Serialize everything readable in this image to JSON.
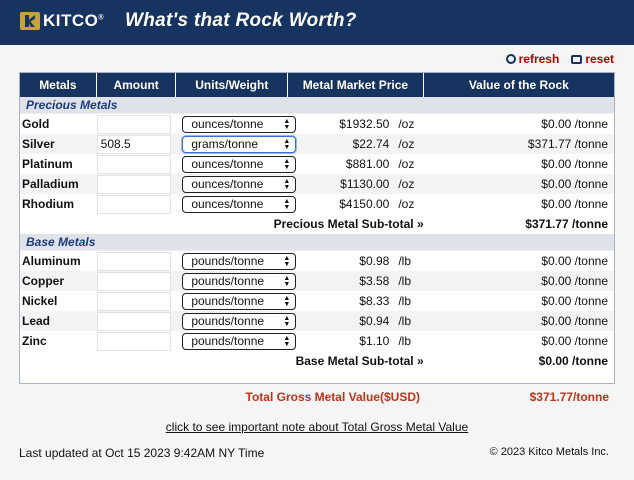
{
  "header": {
    "logo_text": "KITCO",
    "logo_mark": "®",
    "title": "What's that Rock Worth?"
  },
  "actions": {
    "refresh": "refresh",
    "reset": "reset"
  },
  "table": {
    "headers": [
      "Metals",
      "Amount",
      "Units/Weight",
      "Metal Market Price",
      "Value of the Rock"
    ],
    "precious": {
      "section_label": "Precious Metals",
      "rows": [
        {
          "metal": "Gold",
          "amount": "",
          "unit": "ounces/tonne",
          "price": "$1932.50",
          "per": "/oz",
          "value": "$0.00 /tonne"
        },
        {
          "metal": "Silver",
          "amount": "508.5",
          "unit": "grams/tonne",
          "price": "$22.74",
          "per": "/oz",
          "value": "$371.77 /tonne"
        },
        {
          "metal": "Platinum",
          "amount": "",
          "unit": "ounces/tonne",
          "price": "$881.00",
          "per": "/oz",
          "value": "$0.00 /tonne"
        },
        {
          "metal": "Palladium",
          "amount": "",
          "unit": "ounces/tonne",
          "price": "$1130.00",
          "per": "/oz",
          "value": "$0.00 /tonne"
        },
        {
          "metal": "Rhodium",
          "amount": "",
          "unit": "ounces/tonne",
          "price": "$4150.00",
          "per": "/oz",
          "value": "$0.00 /tonne"
        }
      ],
      "subtotal_label": "Precious Metal Sub-total »",
      "subtotal_value": "$371.77 /tonne"
    },
    "base": {
      "section_label": "Base Metals",
      "rows": [
        {
          "metal": "Aluminum",
          "amount": "",
          "unit": "pounds/tonne",
          "price": "$0.98",
          "per": "/lb",
          "value": "$0.00 /tonne"
        },
        {
          "metal": "Copper",
          "amount": "",
          "unit": "pounds/tonne",
          "price": "$3.58",
          "per": "/lb",
          "value": "$0.00 /tonne"
        },
        {
          "metal": "Nickel",
          "amount": "",
          "unit": "pounds/tonne",
          "price": "$8.33",
          "per": "/lb",
          "value": "$0.00 /tonne"
        },
        {
          "metal": "Lead",
          "amount": "",
          "unit": "pounds/tonne",
          "price": "$0.94",
          "per": "/lb",
          "value": "$0.00 /tonne"
        },
        {
          "metal": "Zinc",
          "amount": "",
          "unit": "pounds/tonne",
          "price": "$1.10",
          "per": "/lb",
          "value": "$0.00 /tonne"
        }
      ],
      "subtotal_label": "Base Metal Sub-total »",
      "subtotal_value": "$0.00 /tonne"
    }
  },
  "gross": {
    "label": "Total Gross Metal Value($USD)",
    "value": "$371.77/tonne"
  },
  "note_link": "click to see important note about Total Gross Metal Value",
  "footer": {
    "updated": "Last updated at Oct 15 2023 9:42AM NY Time",
    "copyright": "© 2023 Kitco Metals Inc."
  },
  "colors": {
    "brand_navy": "#17335f",
    "logo_gold": "#c9a33a",
    "total_red": "#c0341a",
    "link_red": "#b30000"
  }
}
